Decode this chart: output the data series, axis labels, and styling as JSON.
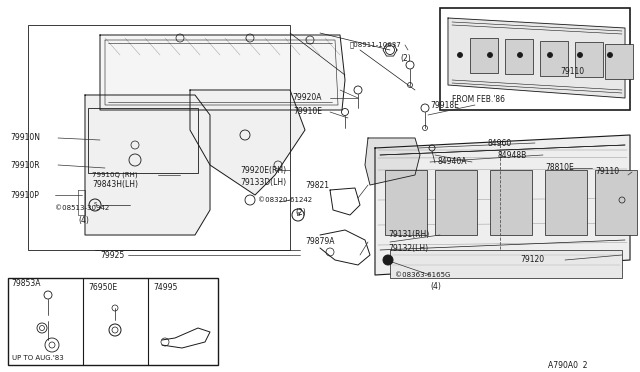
{
  "bg_color": "#ffffff",
  "line_color": "#1a1a1a",
  "figsize": [
    6.4,
    3.72
  ],
  "dpi": 100,
  "xlim": [
    0,
    640
  ],
  "ylim": [
    0,
    372
  ],
  "font_size": 5.5,
  "diagram_id": "A790A0 2"
}
